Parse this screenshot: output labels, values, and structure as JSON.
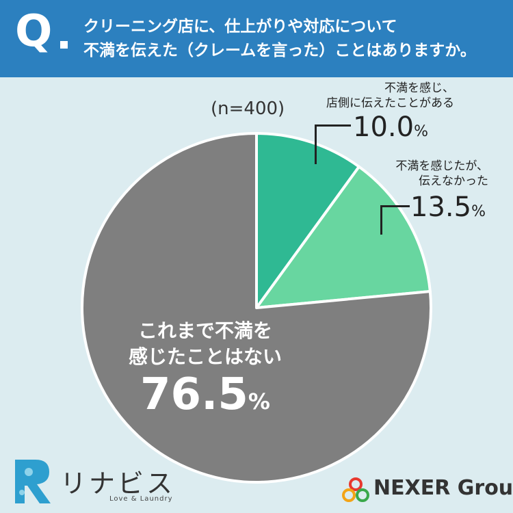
{
  "header": {
    "q_mark": "Q",
    "question_line1": "クリーニング店に、仕上がりや対応について",
    "question_line2": "不満を伝えた（クレームを言った）ことはありますか。"
  },
  "sample_size": "(n=400)",
  "labels": {
    "complained": {
      "line1": "不満を感じ、",
      "line2": "店側に伝えたことがある",
      "value": "10.0",
      "pct": "%"
    },
    "not_told": {
      "line1": "不満を感じたが、",
      "line2": "伝えなかった",
      "value": "13.5",
      "pct": "%"
    },
    "never": {
      "line1": "これまで不満を",
      "line2": "感じたことはない",
      "value": "76.5",
      "pct": "%"
    }
  },
  "footer": {
    "brand_left": "リナビス",
    "brand_left_sub": "Love & Laundry",
    "brand_right": "NEXER Group"
  },
  "chart_data": {
    "type": "pie",
    "title": "",
    "categories": [
      "不満を感じ、店側に伝えたことがある",
      "不満を感じたが、伝えなかった",
      "これまで不満を感じたことはない"
    ],
    "values": [
      10.0,
      13.5,
      76.5
    ],
    "colors": [
      "#2fb993",
      "#68d6a0",
      "#7f7f7f"
    ],
    "start_angle": "12 o'clock, clockwise",
    "legend": "none (direct labels)"
  }
}
